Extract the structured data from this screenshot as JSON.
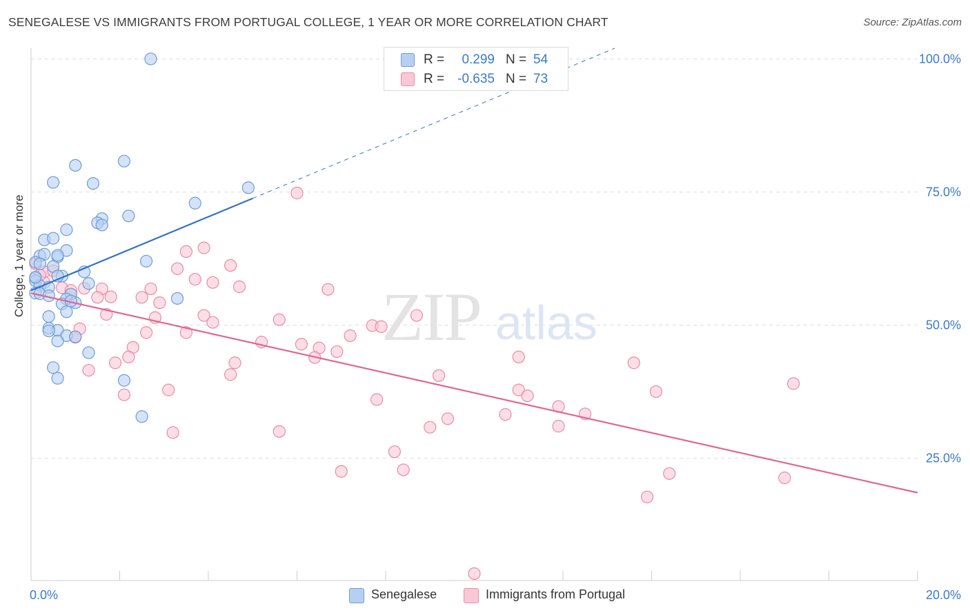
{
  "title": "SENEGALESE VS IMMIGRANTS FROM PORTUGAL COLLEGE, 1 YEAR OR MORE CORRELATION CHART",
  "source": "Source: ZipAtlas.com",
  "watermark": {
    "zip": "ZIP",
    "atlas": "atlas"
  },
  "colors": {
    "blue_fill": "#b7d0f2",
    "blue_stroke": "#6f9bd6",
    "blue_line": "#2f72c9",
    "pink_fill": "#f8c8d6",
    "pink_stroke": "#ea8aa8",
    "pink_line": "#e06592",
    "tick_label": "#3a79cf",
    "grid": "#dddddd"
  },
  "legend": {
    "rows": [
      {
        "r_label": "R =",
        "r_value": "0.299",
        "n_label": "N =",
        "n_value": "54"
      },
      {
        "r_label": "R =",
        "r_value": "-0.635",
        "n_label": "N =",
        "n_value": "73"
      }
    ],
    "bottom": [
      "Senegalese",
      "Immigrants from Portugal"
    ]
  },
  "chart_data": {
    "type": "scatter",
    "title": "SENEGALESE VS IMMIGRANTS FROM PORTUGAL COLLEGE, 1 YEAR OR MORE CORRELATION CHART",
    "xlabel": "",
    "ylabel": "College, 1 year or more",
    "xlim": [
      0,
      20
    ],
    "ylim": [
      2,
      102
    ],
    "x_tick_labels": [
      "0.0%",
      "20.0%"
    ],
    "y_ticks": [
      25,
      50,
      75,
      100
    ],
    "y_tick_labels": [
      "25.0%",
      "50.0%",
      "75.0%",
      "100.0%"
    ],
    "grid": true,
    "legend_position": "top-center",
    "series": [
      {
        "name": "Senegalese",
        "color": "#b7d0f2",
        "trend": {
          "x": [
            0.0,
            5.0
          ],
          "y": [
            56.5,
            73.8
          ],
          "extended_x": [
            5.0,
            20.0
          ],
          "extended_y": [
            73.8,
            125.6
          ]
        },
        "points": [
          [
            2.7,
            100.0
          ],
          [
            1.0,
            80.0
          ],
          [
            2.1,
            80.8
          ],
          [
            0.5,
            76.8
          ],
          [
            1.4,
            76.6
          ],
          [
            4.9,
            75.8
          ],
          [
            3.7,
            72.9
          ],
          [
            2.2,
            70.5
          ],
          [
            1.6,
            70.0
          ],
          [
            1.5,
            69.2
          ],
          [
            1.6,
            68.8
          ],
          [
            0.8,
            67.9
          ],
          [
            0.3,
            66.0
          ],
          [
            0.5,
            66.3
          ],
          [
            0.2,
            63.0
          ],
          [
            0.3,
            63.3
          ],
          [
            0.6,
            62.8
          ],
          [
            0.8,
            64.0
          ],
          [
            0.6,
            63.1
          ],
          [
            2.6,
            62.0
          ],
          [
            0.1,
            61.8
          ],
          [
            0.2,
            61.5
          ],
          [
            0.5,
            61.0
          ],
          [
            1.2,
            60.0
          ],
          [
            0.7,
            59.2
          ],
          [
            0.1,
            58.8
          ],
          [
            0.1,
            58.3
          ],
          [
            0.6,
            59.2
          ],
          [
            1.3,
            57.8
          ],
          [
            0.2,
            57.4
          ],
          [
            0.4,
            57.1
          ],
          [
            0.1,
            56.0
          ],
          [
            0.2,
            55.9
          ],
          [
            0.4,
            55.5
          ],
          [
            0.9,
            55.8
          ],
          [
            3.3,
            55.0
          ],
          [
            0.8,
            54.9
          ],
          [
            1.0,
            54.2
          ],
          [
            0.7,
            54.0
          ],
          [
            0.8,
            52.5
          ],
          [
            0.4,
            51.6
          ],
          [
            0.4,
            49.4
          ],
          [
            0.6,
            49.0
          ],
          [
            0.4,
            48.9
          ],
          [
            0.8,
            48.0
          ],
          [
            0.6,
            47.0
          ],
          [
            1.3,
            44.8
          ],
          [
            0.5,
            42.0
          ],
          [
            0.6,
            40.0
          ],
          [
            2.1,
            39.6
          ],
          [
            2.5,
            32.8
          ],
          [
            0.1,
            59.0
          ],
          [
            0.9,
            54.5
          ],
          [
            1.0,
            47.8
          ]
        ]
      },
      {
        "name": "Immigrants from Portugal",
        "color": "#f8c8d6",
        "trend": {
          "x": [
            0.0,
            20.0
          ],
          "y": [
            56.0,
            18.5
          ]
        },
        "points": [
          [
            6.0,
            74.8
          ],
          [
            3.9,
            64.5
          ],
          [
            3.5,
            63.8
          ],
          [
            4.5,
            61.2
          ],
          [
            3.3,
            60.6
          ],
          [
            0.1,
            61.5
          ],
          [
            0.3,
            60.0
          ],
          [
            0.5,
            60.2
          ],
          [
            3.7,
            58.6
          ],
          [
            0.3,
            58.0
          ],
          [
            4.1,
            58.0
          ],
          [
            4.7,
            57.2
          ],
          [
            0.7,
            57.0
          ],
          [
            0.9,
            56.5
          ],
          [
            1.2,
            56.9
          ],
          [
            1.6,
            56.8
          ],
          [
            2.7,
            56.8
          ],
          [
            6.7,
            56.7
          ],
          [
            0.9,
            55.8
          ],
          [
            1.5,
            55.2
          ],
          [
            1.8,
            55.3
          ],
          [
            2.5,
            55.2
          ],
          [
            2.9,
            54.2
          ],
          [
            1.7,
            52.0
          ],
          [
            3.9,
            51.8
          ],
          [
            2.8,
            51.4
          ],
          [
            8.7,
            51.8
          ],
          [
            5.6,
            51.0
          ],
          [
            4.1,
            50.5
          ],
          [
            7.7,
            49.9
          ],
          [
            7.9,
            49.7
          ],
          [
            3.5,
            48.6
          ],
          [
            2.6,
            48.6
          ],
          [
            1.1,
            49.3
          ],
          [
            7.2,
            48.0
          ],
          [
            1.0,
            47.7
          ],
          [
            5.2,
            46.8
          ],
          [
            6.1,
            46.4
          ],
          [
            6.5,
            45.7
          ],
          [
            2.3,
            45.8
          ],
          [
            6.9,
            45.0
          ],
          [
            6.4,
            43.9
          ],
          [
            2.2,
            44.0
          ],
          [
            11.0,
            44.0
          ],
          [
            1.9,
            42.9
          ],
          [
            4.6,
            42.9
          ],
          [
            13.6,
            42.9
          ],
          [
            1.3,
            41.5
          ],
          [
            4.5,
            40.7
          ],
          [
            9.2,
            40.5
          ],
          [
            17.2,
            39.0
          ],
          [
            3.1,
            37.8
          ],
          [
            11.0,
            37.8
          ],
          [
            14.1,
            37.5
          ],
          [
            11.2,
            36.7
          ],
          [
            2.1,
            36.9
          ],
          [
            7.8,
            36.0
          ],
          [
            11.9,
            34.7
          ],
          [
            12.5,
            33.3
          ],
          [
            10.7,
            33.2
          ],
          [
            9.4,
            32.4
          ],
          [
            9.0,
            30.8
          ],
          [
            11.9,
            31.0
          ],
          [
            5.6,
            30.0
          ],
          [
            3.2,
            29.8
          ],
          [
            8.2,
            26.2
          ],
          [
            8.4,
            22.8
          ],
          [
            7.0,
            22.5
          ],
          [
            14.4,
            22.1
          ],
          [
            17.0,
            21.3
          ],
          [
            13.9,
            17.7
          ],
          [
            10.0,
            3.3
          ],
          [
            0.2,
            59.4
          ]
        ]
      }
    ]
  }
}
